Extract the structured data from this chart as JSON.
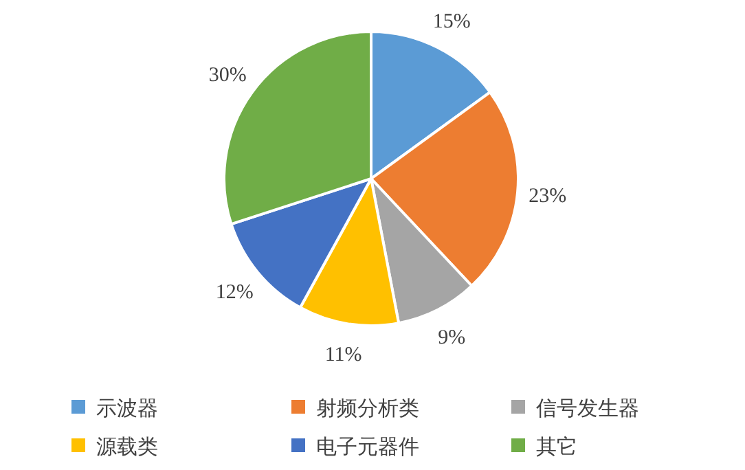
{
  "chart_data": {
    "type": "pie",
    "categories": [
      "示波器",
      "射频分析类",
      "信号发生器",
      "源载类",
      "电子元器件",
      "其它"
    ],
    "values": [
      15,
      23,
      9,
      11,
      12,
      30
    ],
    "colors": [
      "#5b9bd5",
      "#ed7d31",
      "#a5a5a5",
      "#ffc000",
      "#4472c4",
      "#70ad47"
    ],
    "value_labels": [
      "15%",
      "23%",
      "9%",
      "11%",
      "12%",
      "30%"
    ],
    "legend": "bottom"
  }
}
